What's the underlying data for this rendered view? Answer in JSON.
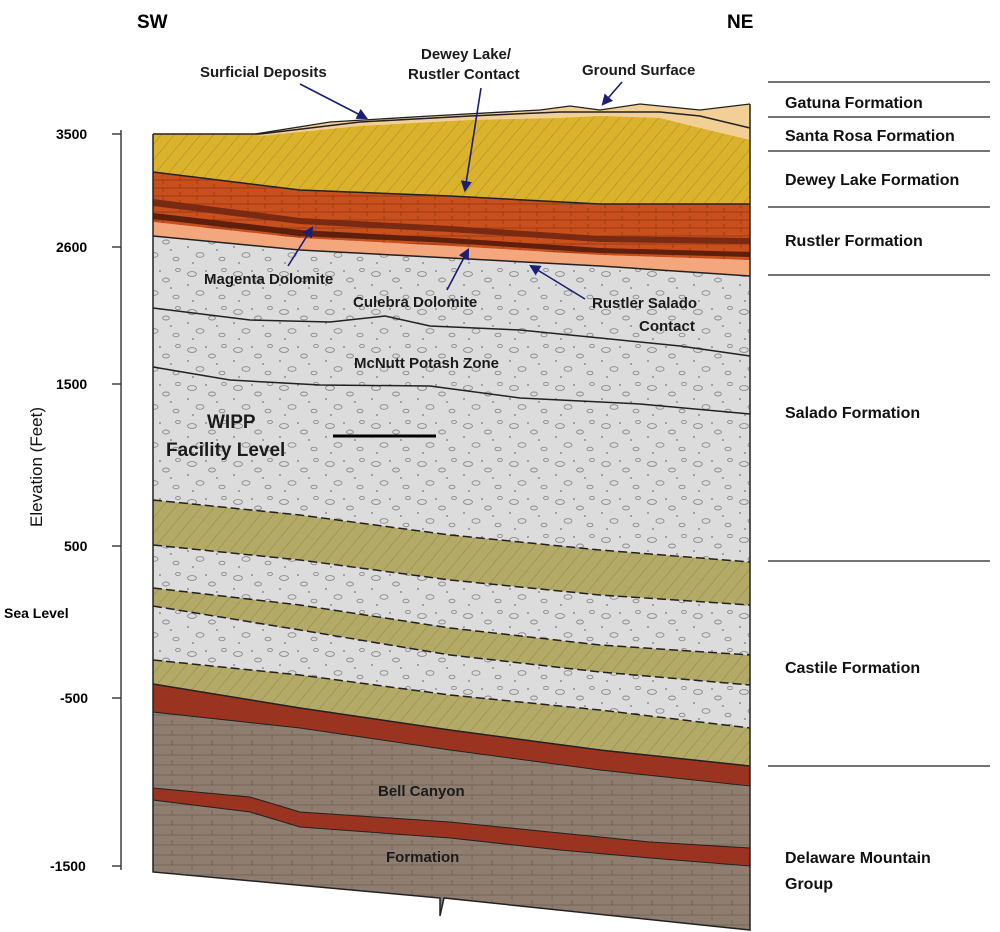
{
  "direction": {
    "left": "SW",
    "right": "NE"
  },
  "axis": {
    "label": "Elevation (Feet)",
    "ticks": [
      "3500",
      "2600",
      "1500",
      "500",
      "Sea Level",
      "-500",
      "-1500"
    ]
  },
  "formations": [
    [
      "Gatuna Formation"
    ],
    [
      "Santa Rosa Formation"
    ],
    [
      "Dewey Lake Formation"
    ],
    [
      "Rustler Formation"
    ],
    [
      "Salado Formation"
    ],
    [
      "Castile Formation"
    ],
    [
      "Delaware Mountain",
      "Group"
    ]
  ],
  "annotations": {
    "surficial": "Surficial Deposits",
    "dewey_rustler": [
      "Dewey Lake/",
      "Rustler Contact"
    ],
    "ground": "Ground Surface",
    "magenta": "Magenta Dolomite",
    "culebra": "Culebra Dolomite",
    "rustler_salado": [
      "Rustler Salado",
      "Contact"
    ],
    "mcnutt": "McNutt Potash Zone",
    "wipp": [
      "WIPP",
      "Facility Level"
    ],
    "bell_canyon": "Bell Canyon",
    "formation": "Formation"
  },
  "colors": {
    "surface": "#f2cf95",
    "dewey_lake": "#dbb22c",
    "rustler": "#c94f1d",
    "salado": "#dcdcdc",
    "castile_anhydrite": "#b4aa68",
    "red_bed": "#9a3420",
    "delaware": "#8f7e70",
    "arrow": "#1c1f73"
  }
}
